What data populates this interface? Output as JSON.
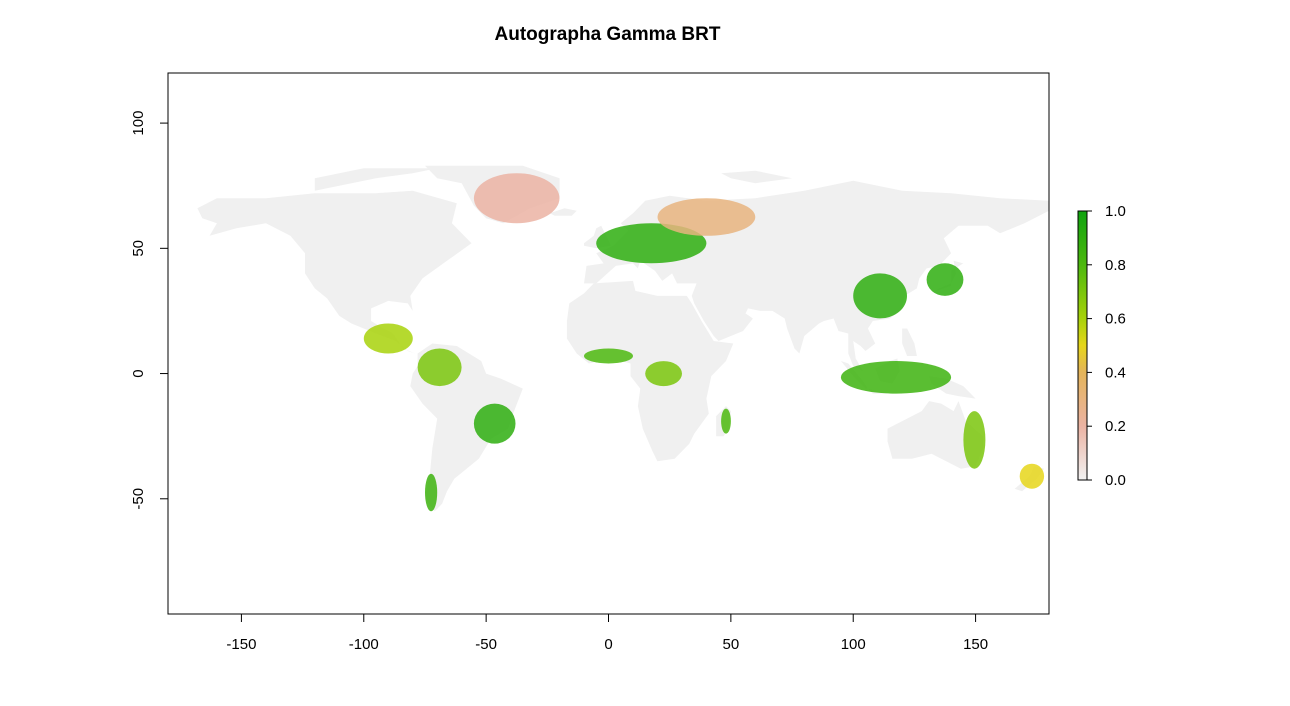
{
  "title": "Autographa Gamma BRT",
  "x_axis": {
    "ticks": [
      -150,
      -100,
      -50,
      0,
      50,
      100,
      150
    ],
    "labels": [
      "-150",
      "-100",
      "-50",
      "0",
      "50",
      "100",
      "150"
    ],
    "range": [
      -180,
      180
    ]
  },
  "y_axis": {
    "ticks": [
      -50,
      0,
      50,
      100
    ],
    "labels": [
      "-50",
      "0",
      "50",
      "100"
    ],
    "range": [
      -96,
      120
    ]
  },
  "legend": {
    "ticks": [
      0.0,
      0.2,
      0.4,
      0.6,
      0.8,
      1.0
    ],
    "labels": [
      "0.0",
      "0.2",
      "0.4",
      "0.6",
      "0.8",
      "1.0"
    ],
    "color_stops": [
      {
        "value": 0.0,
        "color": "#f2f2f2"
      },
      {
        "value": 0.2,
        "color": "#ebb3a3"
      },
      {
        "value": 0.4,
        "color": "#e4b45a"
      },
      {
        "value": 0.5,
        "color": "#e6d61a"
      },
      {
        "value": 0.6,
        "color": "#a8d20a"
      },
      {
        "value": 0.8,
        "color": "#4cb80e"
      },
      {
        "value": 1.0,
        "color": "#0fa30f"
      }
    ]
  },
  "colors": {
    "land": "#f0f0f0",
    "low": "#eaa79a",
    "mid": "#e3c04a",
    "high": "#1aa51a",
    "frame": "#000000"
  },
  "chart_data": {
    "type": "heatmap",
    "title": "Autographa Gamma BRT",
    "xlabel": "",
    "ylabel": "",
    "xlim": [
      -180,
      180
    ],
    "ylim": [
      -96,
      120
    ],
    "zlim": [
      0,
      1
    ],
    "description_regions": [
      {
        "region": "Western & Central Europe",
        "lon": [
          -5,
          40
        ],
        "lat": [
          44,
          60
        ],
        "value": 0.9
      },
      {
        "region": "Eastern China",
        "lon": [
          100,
          122
        ],
        "lat": [
          22,
          40
        ],
        "value": 0.9
      },
      {
        "region": "Japan",
        "lon": [
          130,
          145
        ],
        "lat": [
          31,
          44
        ],
        "value": 0.9
      },
      {
        "region": "Southeast Brazil",
        "lon": [
          -55,
          -38
        ],
        "lat": [
          -28,
          -12
        ],
        "value": 0.9
      },
      {
        "region": "West Africa",
        "lon": [
          -10,
          10
        ],
        "lat": [
          4,
          10
        ],
        "value": 0.8
      },
      {
        "region": "Central Africa",
        "lon": [
          15,
          30
        ],
        "lat": [
          -5,
          5
        ],
        "value": 0.7
      },
      {
        "region": "Indonesia",
        "lon": [
          95,
          140
        ],
        "lat": [
          -8,
          5
        ],
        "value": 0.85
      },
      {
        "region": "Eastern Australia",
        "lon": [
          145,
          154
        ],
        "lat": [
          -38,
          -15
        ],
        "value": 0.7
      },
      {
        "region": "Southern Chile",
        "lon": [
          -75,
          -70
        ],
        "lat": [
          -55,
          -40
        ],
        "value": 0.85
      },
      {
        "region": "Madagascar",
        "lon": [
          46,
          50
        ],
        "lat": [
          -24,
          -14
        ],
        "value": 0.8
      },
      {
        "region": "New Zealand",
        "lon": [
          168,
          178
        ],
        "lat": [
          -46,
          -36
        ],
        "value": 0.5
      },
      {
        "region": "Andes / Northern South America",
        "lon": [
          -78,
          -60
        ],
        "lat": [
          -5,
          10
        ],
        "value": 0.7
      },
      {
        "region": "Central America",
        "lon": [
          -100,
          -80
        ],
        "lat": [
          8,
          20
        ],
        "value": 0.6
      },
      {
        "region": "Northern Russia / Scandinavia",
        "lon": [
          20,
          60
        ],
        "lat": [
          55,
          70
        ],
        "value": 0.3
      },
      {
        "region": "Greenland",
        "lon": [
          -55,
          -20
        ],
        "lat": [
          60,
          80
        ],
        "value": 0.2
      }
    ]
  }
}
